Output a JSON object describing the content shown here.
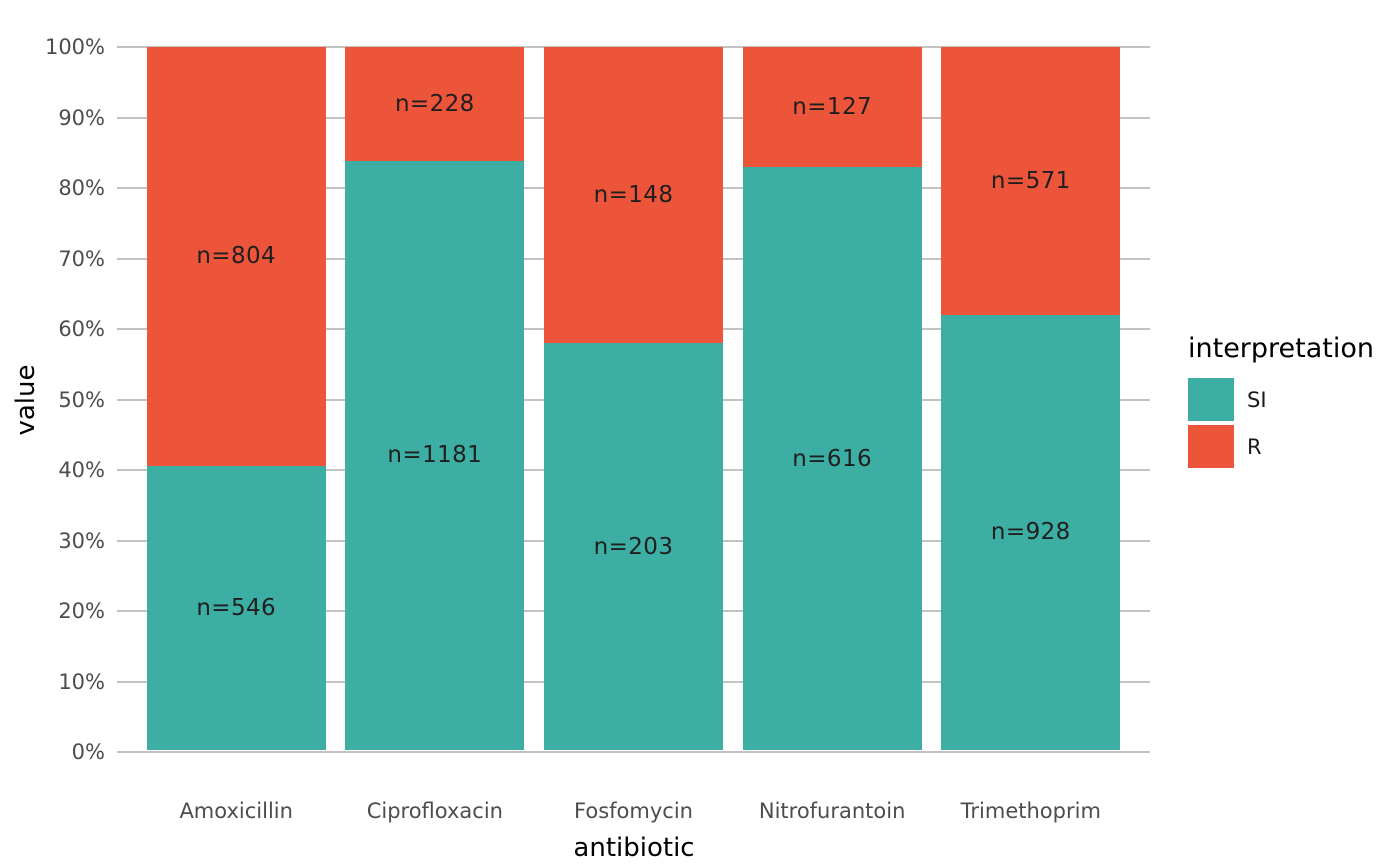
{
  "chart_data": {
    "type": "bar",
    "variant": "stacked-percent",
    "title": "",
    "xlabel": "antibiotic",
    "ylabel": "value",
    "categories": [
      "Amoxicillin",
      "Ciprofloxacin",
      "Fosfomycin",
      "Nitrofurantoin",
      "Trimethoprim"
    ],
    "series": [
      {
        "name": "SI",
        "color": "#3CAEA3",
        "values": [
          546,
          1181,
          203,
          616,
          928
        ],
        "labels": [
          "n=546",
          "n=1181",
          "n=203",
          "n=616",
          "n=928"
        ]
      },
      {
        "name": "R",
        "color": "#ED553B",
        "values": [
          804,
          228,
          148,
          127,
          571
        ],
        "labels": [
          "n=804",
          "n=228",
          "n=148",
          "n=127",
          "n=571"
        ]
      }
    ],
    "series_percent_si": [
      40.4,
      83.8,
      57.8,
      82.9,
      61.9
    ],
    "yticks": [
      {
        "value": 0,
        "label": "0%"
      },
      {
        "value": 10,
        "label": "10%"
      },
      {
        "value": 20,
        "label": "20%"
      },
      {
        "value": 30,
        "label": "30%"
      },
      {
        "value": 40,
        "label": "40%"
      },
      {
        "value": 50,
        "label": "50%"
      },
      {
        "value": 60,
        "label": "60%"
      },
      {
        "value": 70,
        "label": "70%"
      },
      {
        "value": 80,
        "label": "80%"
      },
      {
        "value": 90,
        "label": "90%"
      },
      {
        "value": 100,
        "label": "100%"
      }
    ],
    "ylim": [
      0,
      100
    ],
    "grid": "horizontal",
    "legend": {
      "title": "interpretation",
      "position": "right",
      "entries": [
        "SI",
        "R"
      ]
    },
    "colors": {
      "si": "#3CAEA3",
      "r": "#ED553B",
      "grid": "#C2C2C2",
      "axis_text": "#4D4D4D",
      "bar_label": "#1F1F1F",
      "axis_title": "#000000",
      "background": "#FFFFFF"
    }
  }
}
